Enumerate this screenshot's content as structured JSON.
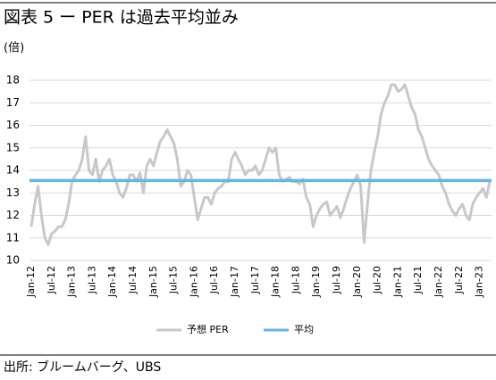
{
  "chart_data": {
    "type": "line",
    "title": "図表 5 ー PER は過去平均並み",
    "y_label": "(倍)",
    "source": "出所: ブルームバーグ、UBS",
    "categories": [
      "Jan-12",
      null,
      null,
      null,
      null,
      null,
      "Jul-12",
      null,
      null,
      null,
      null,
      null,
      "Jan-13",
      null,
      null,
      null,
      null,
      null,
      "Jul-13",
      null,
      null,
      null,
      null,
      null,
      "Jan-14",
      null,
      null,
      null,
      null,
      null,
      "Jul-14",
      null,
      null,
      null,
      null,
      null,
      "Jan-15",
      null,
      null,
      null,
      null,
      null,
      "Jul-15",
      null,
      null,
      null,
      null,
      null,
      "Jan-16",
      null,
      null,
      null,
      null,
      null,
      "Jul-16",
      null,
      null,
      null,
      null,
      null,
      "Jan-17",
      null,
      null,
      null,
      null,
      null,
      "Jul-17",
      null,
      null,
      null,
      null,
      null,
      "Jan-18",
      null,
      null,
      null,
      null,
      null,
      "Jul-18",
      null,
      null,
      null,
      null,
      null,
      "Jan-19",
      null,
      null,
      null,
      null,
      null,
      "Jul-19",
      null,
      null,
      null,
      null,
      null,
      "Jan-20",
      null,
      null,
      null,
      null,
      null,
      "Jul-20",
      null,
      null,
      null,
      null,
      null,
      "Jan-21",
      null,
      null,
      null,
      null,
      null,
      "Jul-21",
      null,
      null,
      null,
      null,
      null,
      "Jan-22",
      null,
      null,
      null,
      null,
      null,
      "Jul-22",
      null,
      null,
      null,
      null,
      null,
      "Jan-23",
      null,
      null,
      null
    ],
    "series": [
      {
        "name": "予想 PER",
        "color": "#c8c8c8",
        "values": [
          11.5,
          12.5,
          13.3,
          12.0,
          11.0,
          10.7,
          11.2,
          11.3,
          11.5,
          11.5,
          11.8,
          12.5,
          13.5,
          13.8,
          14.0,
          14.5,
          15.5,
          14.0,
          13.8,
          14.5,
          13.5,
          14.0,
          14.2,
          14.5,
          13.8,
          13.5,
          13.0,
          12.8,
          13.2,
          13.8,
          13.8,
          13.5,
          13.9,
          13.0,
          14.2,
          14.5,
          14.2,
          14.8,
          15.3,
          15.5,
          15.8,
          15.5,
          15.2,
          14.5,
          13.3,
          13.5,
          14.0,
          13.8,
          12.8,
          11.8,
          12.3,
          12.8,
          12.8,
          12.5,
          13.0,
          13.2,
          13.3,
          13.5,
          13.5,
          14.5,
          14.8,
          14.5,
          14.2,
          13.8,
          14.0,
          14.0,
          14.2,
          13.8,
          14.0,
          14.5,
          15.0,
          14.8,
          15.0,
          13.8,
          13.5,
          13.6,
          13.7,
          13.5,
          13.5,
          13.4,
          13.6,
          12.8,
          12.5,
          11.5,
          12.0,
          12.3,
          12.5,
          12.6,
          12.0,
          12.2,
          12.4,
          11.9,
          12.3,
          12.8,
          13.2,
          13.5,
          13.8,
          13.3,
          10.8,
          12.5,
          14.0,
          14.8,
          15.5,
          16.5,
          17.0,
          17.3,
          17.8,
          17.8,
          17.5,
          17.6,
          17.8,
          17.3,
          16.8,
          16.5,
          15.8,
          15.5,
          15.0,
          14.5,
          14.2,
          14.0,
          13.8,
          13.3,
          13.0,
          12.5,
          12.2,
          12.0,
          12.3,
          12.5,
          12.0,
          11.8,
          12.5,
          12.8,
          13.0,
          13.2,
          12.8,
          13.5
        ]
      }
    ],
    "average": {
      "name": "平均",
      "color": "#6cb4dc",
      "value": 13.55
    },
    "ylim": [
      10,
      18
    ],
    "yticks": [
      10,
      11,
      12,
      13,
      14,
      15,
      16,
      17,
      18
    ],
    "grid": true,
    "legend": "bottom"
  }
}
